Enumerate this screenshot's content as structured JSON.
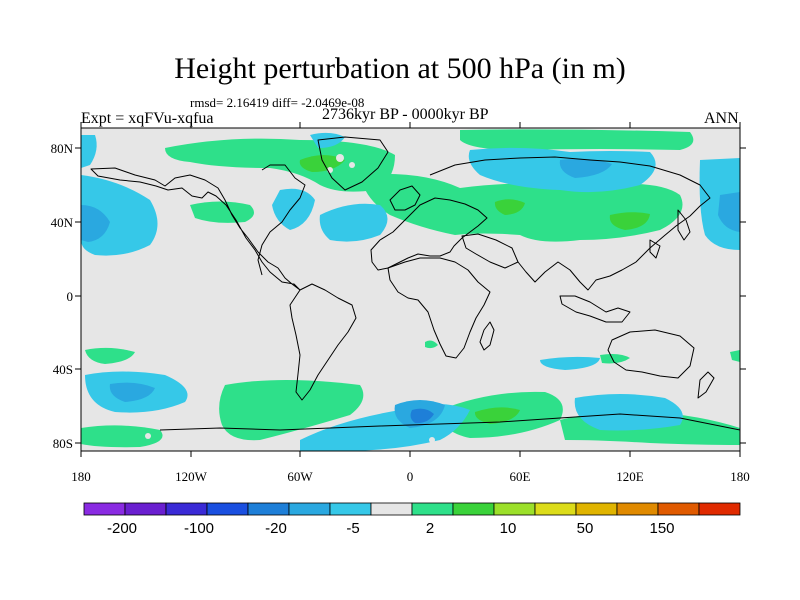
{
  "title": "Height perturbation at 500 hPa (in m)",
  "rmsd_line": "rmsd= 2.16419 diff= -2.0469e-08",
  "period": "2736kyr BP - 0000kyr BP",
  "experiment": "Expt = xqFVu-xqfua",
  "season": "ANN",
  "map": {
    "projection": "cylindrical equidistant",
    "lon_range": [
      -180,
      180
    ],
    "lat_range": [
      -90,
      90
    ],
    "x_tick_labels": [
      "180",
      "120W",
      "60W",
      "0",
      "60E",
      "120E",
      "180"
    ],
    "y_tick_labels": [
      "80N",
      "40N",
      "0",
      "40S",
      "80S"
    ],
    "background_color": "#e6e6e6",
    "coastline_color": "#000000"
  },
  "colorbar": {
    "labels": [
      "-200",
      "-100",
      "-20",
      "-5",
      "2",
      "10",
      "50",
      "150"
    ],
    "colors": [
      "#8a2be2",
      "#6a1fd0",
      "#3a2ad6",
      "#1a4fe0",
      "#1e7fd8",
      "#2aa8e0",
      "#36c8e8",
      "#e6e6e6",
      "#2ee08a",
      "#3ad23a",
      "#9ce02a",
      "#dcdc1a",
      "#e0b400",
      "#e08a00",
      "#e05a00",
      "#e02a00"
    ]
  }
}
